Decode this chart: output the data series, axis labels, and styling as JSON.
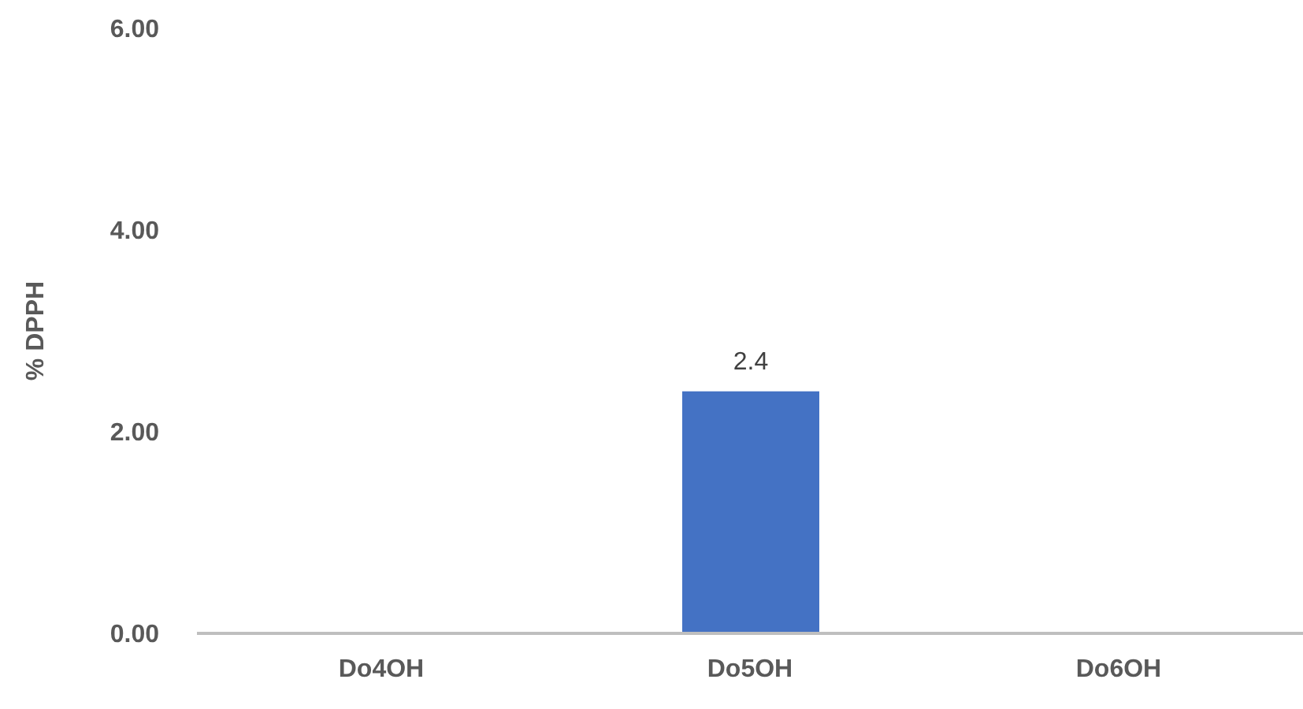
{
  "chart_data": {
    "type": "bar",
    "ylabel": "% DPPH",
    "categories": [
      "Do4OH",
      "Do5OH",
      "Do6OH"
    ],
    "values": [
      null,
      2.4,
      null
    ],
    "color": "#4472c4",
    "value_labels": [
      null,
      "2.4",
      null
    ],
    "ylim": [
      0,
      6
    ],
    "yticks": [
      {
        "value": 0,
        "label": "0.00"
      },
      {
        "value": 2,
        "label": "2.00"
      },
      {
        "value": 4,
        "label": "4.00"
      },
      {
        "value": 6,
        "label": "6.00"
      }
    ],
    "grid": false,
    "legend": false
  }
}
